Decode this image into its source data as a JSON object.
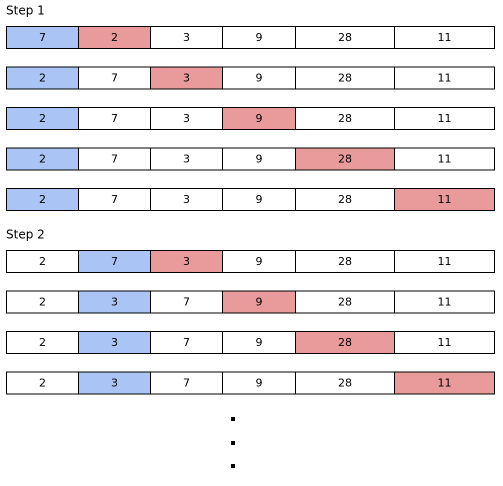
{
  "steps": [
    {
      "label": "Step 1",
      "rows": [
        {
          "cells": [
            7,
            2,
            3,
            9,
            28,
            11
          ],
          "colors": [
            "#a9c4f5",
            "#e99a9a",
            "#ffffff",
            "#ffffff",
            "#ffffff",
            "#ffffff"
          ]
        },
        {
          "cells": [
            2,
            7,
            3,
            9,
            28,
            11
          ],
          "colors": [
            "#a9c4f5",
            "#ffffff",
            "#e99a9a",
            "#ffffff",
            "#ffffff",
            "#ffffff"
          ]
        },
        {
          "cells": [
            2,
            7,
            3,
            9,
            28,
            11
          ],
          "colors": [
            "#a9c4f5",
            "#ffffff",
            "#ffffff",
            "#e99a9a",
            "#ffffff",
            "#ffffff"
          ]
        },
        {
          "cells": [
            2,
            7,
            3,
            9,
            28,
            11
          ],
          "colors": [
            "#a9c4f5",
            "#ffffff",
            "#ffffff",
            "#ffffff",
            "#e99a9a",
            "#ffffff"
          ]
        },
        {
          "cells": [
            2,
            7,
            3,
            9,
            28,
            11
          ],
          "colors": [
            "#a9c4f5",
            "#ffffff",
            "#ffffff",
            "#ffffff",
            "#ffffff",
            "#e99a9a"
          ]
        }
      ]
    },
    {
      "label": "Step 2",
      "rows": [
        {
          "cells": [
            2,
            7,
            3,
            9,
            28,
            11
          ],
          "colors": [
            "#ffffff",
            "#a9c4f5",
            "#e99a9a",
            "#ffffff",
            "#ffffff",
            "#ffffff"
          ]
        },
        {
          "cells": [
            2,
            3,
            7,
            9,
            28,
            11
          ],
          "colors": [
            "#ffffff",
            "#a9c4f5",
            "#ffffff",
            "#e99a9a",
            "#ffffff",
            "#ffffff"
          ]
        },
        {
          "cells": [
            2,
            3,
            7,
            9,
            28,
            11
          ],
          "colors": [
            "#ffffff",
            "#a9c4f5",
            "#ffffff",
            "#ffffff",
            "#e99a9a",
            "#ffffff"
          ]
        },
        {
          "cells": [
            2,
            3,
            7,
            9,
            28,
            11
          ],
          "colors": [
            "#ffffff",
            "#a9c4f5",
            "#ffffff",
            "#ffffff",
            "#ffffff",
            "#e99a9a"
          ]
        }
      ]
    }
  ]
}
